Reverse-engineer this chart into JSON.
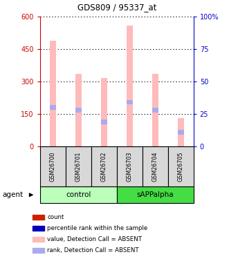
{
  "title": "GDS809 / 95337_at",
  "samples": [
    "GSM26700",
    "GSM26701",
    "GSM26702",
    "GSM26703",
    "GSM26704",
    "GSM26705"
  ],
  "group_labels": [
    "control",
    "sAPPalpha"
  ],
  "bar_values": [
    490,
    335,
    315,
    560,
    335,
    130
  ],
  "rank_pct": [
    30,
    28,
    19,
    34,
    28,
    11
  ],
  "count_values": [
    0,
    0,
    0,
    0,
    0,
    0
  ],
  "bar_color_absent": "#ffbbbb",
  "rank_color_absent": "#aaaaee",
  "red_color": "#cc2200",
  "blue_color": "#0000bb",
  "ylim_left": [
    0,
    600
  ],
  "ylim_right": [
    0,
    100
  ],
  "yticks_left": [
    0,
    150,
    300,
    450,
    600
  ],
  "yticks_right": [
    0,
    25,
    50,
    75,
    100
  ],
  "ytick_labels_left": [
    "0",
    "150",
    "300",
    "450",
    "600"
  ],
  "ytick_labels_right": [
    "0",
    "25",
    "50",
    "75",
    "100%"
  ],
  "left_axis_color": "#cc0000",
  "right_axis_color": "#0000cc",
  "bar_width": 0.25,
  "legend_items": [
    {
      "label": "count",
      "color": "#cc2200"
    },
    {
      "label": "percentile rank within the sample",
      "color": "#0000bb"
    },
    {
      "label": "value, Detection Call = ABSENT",
      "color": "#ffbbbb"
    },
    {
      "label": "rank, Detection Call = ABSENT",
      "color": "#aaaaee"
    }
  ],
  "agent_label": "agent",
  "ctrl_color": "#bbffbb",
  "sapp_color": "#44dd44",
  "sample_bg": "#d8d8d8"
}
